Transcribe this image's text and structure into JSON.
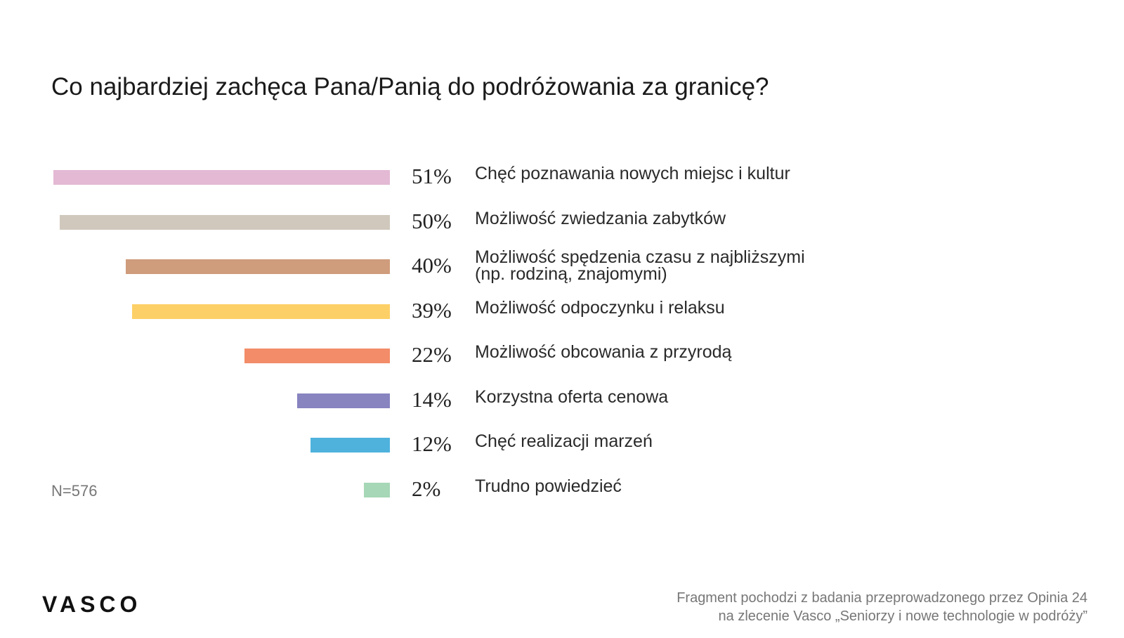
{
  "chart_data": {
    "type": "bar",
    "orientation": "horizontal",
    "title": "Co najbardziej zachęca Pana/Panią do podróżowania za granicę?",
    "categories": [
      "Chęć poznawania nowych miejsc i kultur",
      "Możliwość zwiedzania zabytków",
      "Możliwość spędzenia czasu z najbliższymi (np. rodziną, znajomymi)",
      "Możliwość odpoczynku i relaksu",
      "Możliwość obcowania z przyrodą",
      "Korzystna oferta cenowa",
      "Chęć realizacji marzeń",
      "Trudno powiedzieć"
    ],
    "label_lines": [
      [
        "Chęć poznawania nowych miejsc i kultur"
      ],
      [
        "Możliwość zwiedzania zabytków"
      ],
      [
        "Możliwość spędzenia czasu z najbliższymi",
        "(np. rodziną, znajomymi)"
      ],
      [
        "Możliwość odpoczynku i relaksu"
      ],
      [
        "Możliwość obcowania z przyrodą"
      ],
      [
        "Korzystna oferta cenowa"
      ],
      [
        "Chęć realizacji marzeń"
      ],
      [
        "Trudno powiedzieć"
      ]
    ],
    "values": [
      51,
      50,
      40,
      39,
      22,
      14,
      12,
      2
    ],
    "value_labels": [
      "51%",
      "50%",
      "40%",
      "39%",
      "22%",
      "14%",
      "12%",
      "2%"
    ],
    "colors": [
      "#e3b9d4",
      "#d0c8bc",
      "#cf9c7c",
      "#fdd067",
      "#f28c69",
      "#8884c0",
      "#4fb2dd",
      "#a6d7b6"
    ],
    "xlabel": "",
    "ylabel": "",
    "grid": false
  },
  "sample_size": "N=576",
  "logo": "VASCO",
  "footer": {
    "line1": "Fragment pochodzi z badania przeprowadzonego przez Opinia 24",
    "line2": "na zlecenie Vasco „Seniorzy i nowe technologie w podróży”"
  }
}
